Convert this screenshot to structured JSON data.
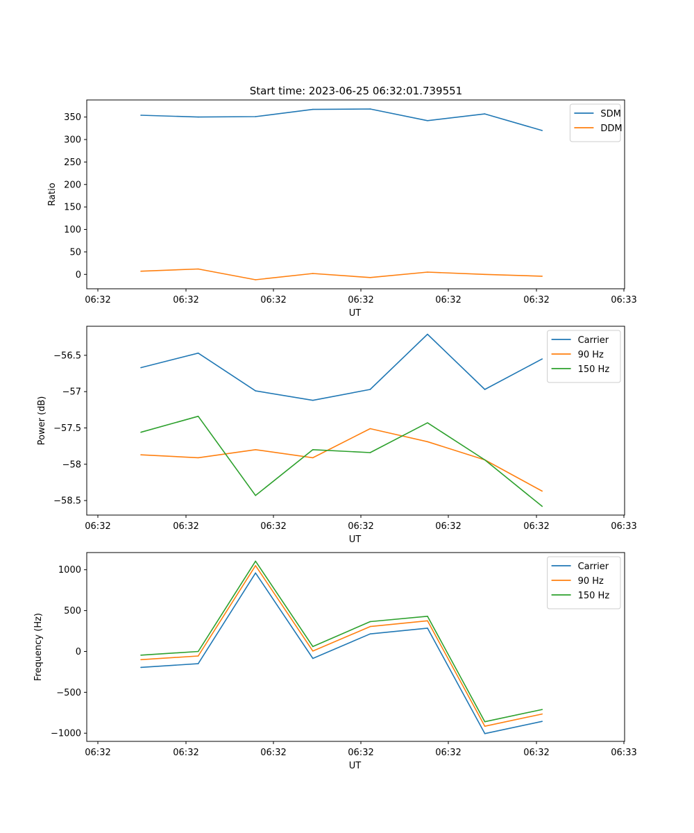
{
  "figure_title": "Start time: 2023-06-25 06:32:01.739551",
  "colors": {
    "blue": "#1f77b4",
    "orange": "#ff7f0e",
    "green": "#2ca02c"
  },
  "chart_data": [
    {
      "type": "line",
      "title": "Start time: 2023-06-25 06:32:01.739551",
      "xlabel": "UT",
      "ylabel": "Ratio",
      "xticklabels": [
        "06:32",
        "06:32",
        "06:32",
        "06:32",
        "06:32",
        "06:32",
        "06:33"
      ],
      "ylim": [
        -32,
        388
      ],
      "yticks": [
        0,
        50,
        100,
        150,
        200,
        250,
        300,
        350
      ],
      "legend_position": "top-right",
      "x": [
        1,
        2,
        3,
        4,
        5,
        6,
        7,
        8
      ],
      "series": [
        {
          "name": "SDM",
          "color": "#1f77b4",
          "values": [
            354,
            350,
            351,
            367,
            368,
            342,
            357,
            320
          ]
        },
        {
          "name": "DDM",
          "color": "#ff7f0e",
          "values": [
            7,
            12,
            -12,
            2,
            -7,
            5,
            0,
            -4
          ]
        }
      ]
    },
    {
      "type": "line",
      "xlabel": "UT",
      "ylabel": "Power (dB)",
      "xticklabels": [
        "06:32",
        "06:32",
        "06:32",
        "06:32",
        "06:32",
        "06:32",
        "06:33"
      ],
      "ylim": [
        -58.7,
        -56.1
      ],
      "yticks": [
        -58.5,
        -58.0,
        -57.5,
        -57.0,
        -56.5
      ],
      "legend_position": "top-right",
      "x": [
        1,
        2,
        3,
        4,
        5,
        6,
        7,
        8
      ],
      "series": [
        {
          "name": "Carrier",
          "color": "#1f77b4",
          "values": [
            -56.67,
            -56.47,
            -56.99,
            -57.12,
            -56.97,
            -56.21,
            -56.97,
            -56.55
          ]
        },
        {
          "name": "90 Hz",
          "color": "#ff7f0e",
          "values": [
            -57.87,
            -57.91,
            -57.8,
            -57.91,
            -57.51,
            -57.69,
            -57.94,
            -58.37
          ]
        },
        {
          "name": "150 Hz",
          "color": "#2ca02c",
          "values": [
            -57.56,
            -57.34,
            -58.43,
            -57.8,
            -57.84,
            -57.43,
            -57.94,
            -58.58
          ]
        }
      ]
    },
    {
      "type": "line",
      "xlabel": "UT",
      "ylabel": "Frequency (Hz)",
      "xticklabels": [
        "06:32",
        "06:32",
        "06:32",
        "06:32",
        "06:32",
        "06:32",
        "06:33"
      ],
      "ylim": [
        -1100,
        1210
      ],
      "yticks": [
        -1000,
        -500,
        0,
        500,
        1000
      ],
      "legend_position": "top-right",
      "x": [
        1,
        2,
        3,
        4,
        5,
        6,
        7,
        8
      ],
      "series": [
        {
          "name": "Carrier",
          "color": "#1f77b4",
          "values": [
            -195,
            -150,
            960,
            -85,
            215,
            285,
            -1005,
            -855
          ]
        },
        {
          "name": "90 Hz",
          "color": "#ff7f0e",
          "values": [
            -100,
            -55,
            1050,
            5,
            305,
            375,
            -915,
            -765
          ]
        },
        {
          "name": "150 Hz",
          "color": "#2ca02c",
          "values": [
            -45,
            0,
            1105,
            60,
            365,
            430,
            -860,
            -710
          ]
        }
      ]
    }
  ]
}
